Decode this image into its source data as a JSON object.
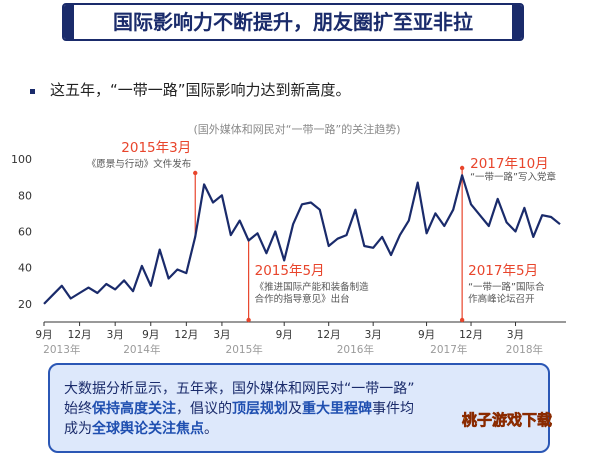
{
  "header": {
    "title": "国际影响力不断提升，朋友圈扩至亚非拉"
  },
  "intro": "这五年，“一带一路”国际影响力达到新高度。",
  "summary": {
    "line1": "大数据分析显示，五年来，国外媒体和网民对“一带一路”",
    "line2_a": "始终",
    "line2_b": "保持高度关注",
    "line2_c": "，倡议的",
    "line2_d": "顶层规划",
    "line2_e": "及",
    "line2_f": "重大里程碑",
    "line2_g": "事件均",
    "line3_a": "成为",
    "line3_b": "全球舆论关注焦点",
    "line3_c": "。"
  },
  "watermark": "桃子游戏下载",
  "colors": {
    "navy": "#1a2b6b",
    "accent_red": "#e8452c",
    "line": "#1a2b6b",
    "box_fill": "#dde8fb",
    "box_border": "#2b57b5"
  },
  "chart_data": {
    "type": "line",
    "title": "(国外媒体和网民对“一带一路”的关注趋势)",
    "xlabel": "",
    "ylabel": "",
    "ylim": [
      10,
      105
    ],
    "yticks": [
      20,
      40,
      60,
      80,
      100
    ],
    "grid": false,
    "xtick_labels": [
      "9月",
      "12月",
      "3月",
      "9月",
      "12月",
      "3月",
      "9月",
      "12月",
      "3月",
      "9月",
      "12月",
      "3月"
    ],
    "xtick_index": [
      0,
      4,
      8,
      12,
      16,
      20,
      27,
      32,
      37,
      43,
      48,
      53
    ],
    "year_labels": [
      {
        "label": "2013年",
        "index": 2
      },
      {
        "label": "2014年",
        "index": 11
      },
      {
        "label": "2015年",
        "index": 22.5
      },
      {
        "label": "2016年",
        "index": 35
      },
      {
        "label": "2017年",
        "index": 45.5
      },
      {
        "label": "2018年",
        "index": 54
      }
    ],
    "series": [
      {
        "values": [
          20,
          25,
          30,
          23,
          26,
          29,
          26,
          31,
          28,
          33,
          27,
          41,
          30,
          50,
          34,
          39,
          37,
          57,
          86,
          76,
          80,
          58,
          66,
          55,
          59,
          48,
          60,
          44,
          64,
          75,
          76,
          72,
          52,
          56,
          58,
          72,
          52,
          51,
          57,
          47,
          58,
          66,
          87,
          59,
          70,
          63,
          72,
          91,
          75,
          69,
          63,
          78,
          65,
          60,
          73,
          57,
          69,
          68,
          64
        ]
      }
    ],
    "annotations": [
      {
        "index": 17,
        "side": "top",
        "date": "2015年3月",
        "text": "《愿景与行动》文件发布"
      },
      {
        "index": 23,
        "side": "bottom",
        "date": "2015年5月",
        "text": "《推进国际产能和装备制造",
        "text2": "合作的指导意见》出台"
      },
      {
        "index": 47,
        "side": "top",
        "date": "2017年10月",
        "text": "“一带一路”写入党章"
      },
      {
        "index": 47,
        "side": "bottom",
        "date": "2017年5月",
        "text": "“一带一路”国际合",
        "text2": "作高峰论坛召开"
      }
    ]
  }
}
